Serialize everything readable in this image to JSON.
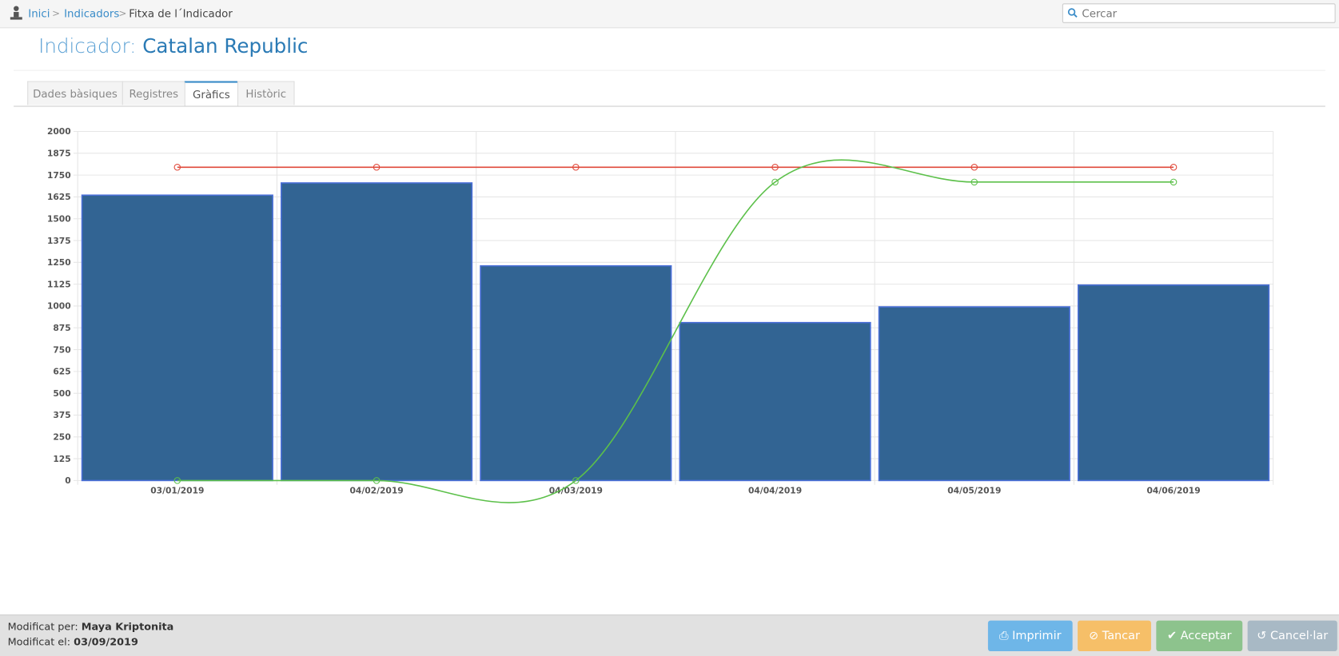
{
  "breadcrumb": [
    "Inici",
    "Indicadors",
    "Fitxa de l´Indicador"
  ],
  "search_placeholder": "Cercar",
  "title": {
    "label": "Indicador:",
    "name": "Catalan Republic"
  },
  "tabs": [
    "Dades bàsiques",
    "Registres",
    "Gràfics",
    "Històric"
  ],
  "active_tab": 2,
  "chart_data": {
    "type": "bar",
    "categories": [
      "03/01/2019",
      "04/02/2019",
      "04/03/2019",
      "04/04/2019",
      "04/05/2019",
      "04/06/2019"
    ],
    "series": [
      {
        "type": "bar",
        "color": "#2b5f8f",
        "values": [
          1635,
          1705,
          1230,
          905,
          995,
          1120
        ]
      },
      {
        "type": "line",
        "color": "#e0483a",
        "smooth": false,
        "values": [
          1795,
          1795,
          1795,
          1795,
          1795,
          1795
        ]
      },
      {
        "type": "line",
        "color": "#5cc04a",
        "smooth": true,
        "values": [
          0,
          0,
          0,
          1710,
          1710,
          1710
        ]
      }
    ],
    "ylim": [
      0,
      2000
    ],
    "yticks": [
      0,
      125,
      250,
      375,
      500,
      625,
      750,
      875,
      1000,
      1125,
      1250,
      1375,
      1500,
      1625,
      1750,
      1875,
      2000
    ],
    "grid": true
  },
  "footer": {
    "modified_by_label": "Modificat per:",
    "modified_by": "Maya Kriptonita",
    "modified_on_label": "Modificat el:",
    "modified_on": "03/09/2019"
  },
  "buttons": [
    "Imprimir",
    "Tancar",
    "Acceptar",
    "Cancel·lar"
  ]
}
